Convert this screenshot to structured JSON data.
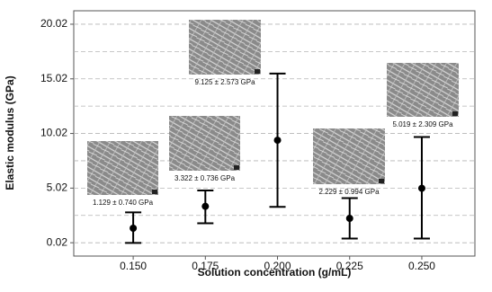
{
  "chart_data": {
    "type": "errorbar",
    "x_label": "Solution concentration (g/mL)",
    "y_label": "Elastic modulus (GPa)",
    "x": [
      0.15,
      0.175,
      0.2,
      0.225,
      0.25
    ],
    "values": [
      1.35,
      3.35,
      9.4,
      2.25,
      5.0
    ],
    "low": [
      0.0,
      1.8,
      3.3,
      0.4,
      0.4
    ],
    "high": [
      2.8,
      4.8,
      15.5,
      4.1,
      9.7
    ],
    "color": "#000000",
    "annotations": [
      "1.129 ± 0.740 GPa",
      "3.322 ± 0.736 GPa",
      "9.125 ± 2.573 GPa",
      "2.229 ± 0.994 GPa",
      "5.019 ± 2.309 GPa"
    ],
    "xlim": [
      0.1294,
      0.2684
    ],
    "ylim": [
      -1.2,
      21.25
    ],
    "xticks": [
      {
        "value": 0.15,
        "label": "0.150"
      },
      {
        "value": 0.175,
        "label": "0.175"
      },
      {
        "value": 0.2,
        "label": "0.200"
      },
      {
        "value": 0.225,
        "label": "0.225"
      },
      {
        "value": 0.25,
        "label": "0.250"
      }
    ],
    "yticks": [
      0.02,
      5.02,
      10.02,
      15.02,
      20.02
    ],
    "ygrid": [
      0.02,
      2.52,
      5.02,
      7.52,
      10.02,
      12.52,
      15.02,
      17.52,
      20.02
    ],
    "grid": true
  }
}
